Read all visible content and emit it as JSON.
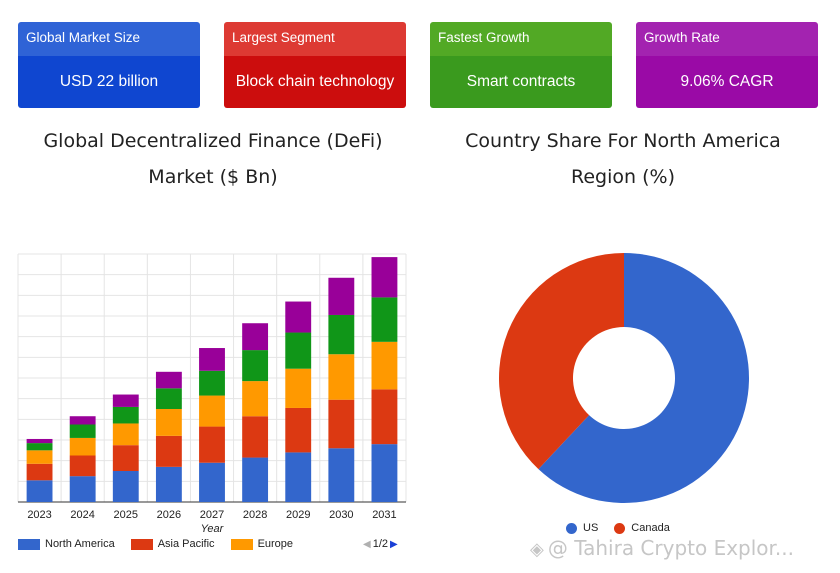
{
  "cards": [
    {
      "label": "Global Market Size",
      "value": "USD 22 billion",
      "head_color": "#2f63d6",
      "body_color": "#0f46d0"
    },
    {
      "label": "Largest Segment",
      "value": "Block chain technology",
      "head_color": "#dd3a33",
      "body_color": "#cc0d0d"
    },
    {
      "label": "Fastest Growth",
      "value": "Smart contracts",
      "head_color": "#52a925",
      "body_color": "#3a9a1e"
    },
    {
      "label": "Growth Rate",
      "value": "9.06% CAGR",
      "head_color": "#a323b0",
      "body_color": "#9a0aa6"
    }
  ],
  "chart_data": [
    {
      "type": "bar",
      "stacked": true,
      "title_line1": "Global Decentralized Finance (DeFi)",
      "title_line2": "Market ($ Bn)",
      "xlabel": "Year",
      "ylabel": "",
      "categories": [
        "2023",
        "2024",
        "2025",
        "2026",
        "2027",
        "2028",
        "2029",
        "2030",
        "2031"
      ],
      "series": [
        {
          "name": "North America",
          "color": "#3366cc",
          "values": [
            2.1,
            2.5,
            3.0,
            3.4,
            3.8,
            4.3,
            4.8,
            5.2,
            5.6
          ]
        },
        {
          "name": "Asia Pacific",
          "color": "#dc3912",
          "values": [
            1.6,
            2.0,
            2.5,
            3.0,
            3.5,
            4.0,
            4.3,
            4.7,
            5.3
          ]
        },
        {
          "name": "Europe",
          "color": "#ff9900",
          "values": [
            1.3,
            1.7,
            2.1,
            2.6,
            3.0,
            3.4,
            3.8,
            4.4,
            4.6
          ]
        },
        {
          "name": "",
          "color": "#109618",
          "values": [
            0.7,
            1.3,
            1.6,
            2.0,
            2.4,
            3.0,
            3.5,
            3.8,
            4.3
          ]
        },
        {
          "name": "",
          "color": "#990099",
          "values": [
            0.4,
            0.8,
            1.2,
            1.6,
            2.2,
            2.6,
            3.0,
            3.6,
            3.9
          ]
        }
      ],
      "ylim": [
        0,
        24
      ],
      "grid": true,
      "legend_position": "bottom",
      "legend_page": "1/2",
      "legend_visible_series": 3
    },
    {
      "type": "pie",
      "donut": true,
      "title_line1": "Country Share For North America",
      "title_line2": "Region (%)",
      "labels": [
        "US",
        "Canada"
      ],
      "values": [
        62,
        38
      ],
      "colors": [
        "#3366cc",
        "#dc3912"
      ],
      "legend_position": "bottom"
    }
  ],
  "watermark": "@ Tahira Crypto Explor..."
}
